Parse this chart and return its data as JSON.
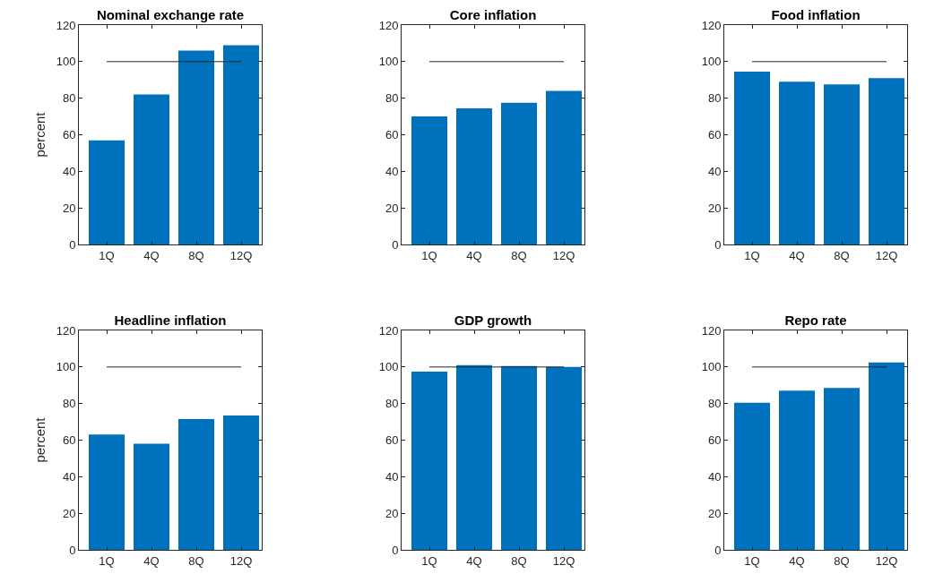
{
  "chart_data": [
    {
      "type": "bar",
      "title": "Nominal exchange rate",
      "ylabel": "percent",
      "categories": [
        "1Q",
        "4Q",
        "8Q",
        "12Q"
      ],
      "values": [
        57,
        82,
        106,
        109
      ],
      "color": "#0072bd",
      "ylim": [
        0,
        120
      ],
      "yticks": [
        0,
        20,
        40,
        60,
        80,
        100,
        120
      ],
      "grid": false,
      "legend": false,
      "ref_lines": [
        {
          "axis": "y",
          "value": 100,
          "color": "#262626"
        }
      ]
    },
    {
      "type": "bar",
      "title": "Core inflation",
      "categories": [
        "1Q",
        "4Q",
        "8Q",
        "12Q"
      ],
      "values": [
        70,
        74.5,
        77.5,
        84
      ],
      "color": "#0072bd",
      "ylim": [
        0,
        120
      ],
      "yticks": [
        0,
        20,
        40,
        60,
        80,
        100,
        120
      ],
      "grid": false,
      "legend": false,
      "ref_lines": [
        {
          "axis": "y",
          "value": 100,
          "color": "#262626"
        }
      ]
    },
    {
      "type": "bar",
      "title": "Food inflation",
      "categories": [
        "1Q",
        "4Q",
        "8Q",
        "12Q"
      ],
      "values": [
        94.5,
        89,
        87.5,
        91
      ],
      "color": "#0072bd",
      "ylim": [
        0,
        120
      ],
      "yticks": [
        0,
        20,
        40,
        60,
        80,
        100,
        120
      ],
      "grid": false,
      "legend": false,
      "ref_lines": [
        {
          "axis": "y",
          "value": 100,
          "color": "#262626"
        }
      ]
    },
    {
      "type": "bar",
      "title": "Headline inflation",
      "ylabel": "percent",
      "categories": [
        "1Q",
        "4Q",
        "8Q",
        "12Q"
      ],
      "values": [
        63,
        58,
        71.5,
        73.5
      ],
      "color": "#0072bd",
      "ylim": [
        0,
        120
      ],
      "yticks": [
        0,
        20,
        40,
        60,
        80,
        100,
        120
      ],
      "grid": false,
      "legend": false,
      "ref_lines": [
        {
          "axis": "y",
          "value": 100,
          "color": "#262626"
        }
      ]
    },
    {
      "type": "bar",
      "title": "GDP growth",
      "categories": [
        "1Q",
        "4Q",
        "8Q",
        "12Q"
      ],
      "values": [
        97.5,
        101,
        100.5,
        100
      ],
      "color": "#0072bd",
      "ylim": [
        0,
        120
      ],
      "yticks": [
        0,
        20,
        40,
        60,
        80,
        100,
        120
      ],
      "grid": false,
      "legend": false,
      "ref_lines": [
        {
          "axis": "y",
          "value": 100,
          "color": "#262626"
        }
      ]
    },
    {
      "type": "bar",
      "title": "Repo rate",
      "categories": [
        "1Q",
        "4Q",
        "8Q",
        "12Q"
      ],
      "values": [
        80.5,
        87,
        88.5,
        102.5
      ],
      "color": "#0072bd",
      "ylim": [
        0,
        120
      ],
      "yticks": [
        0,
        20,
        40,
        60,
        80,
        100,
        120
      ],
      "grid": false,
      "legend": false,
      "ref_lines": [
        {
          "axis": "y",
          "value": 100,
          "color": "#262626"
        }
      ]
    }
  ]
}
